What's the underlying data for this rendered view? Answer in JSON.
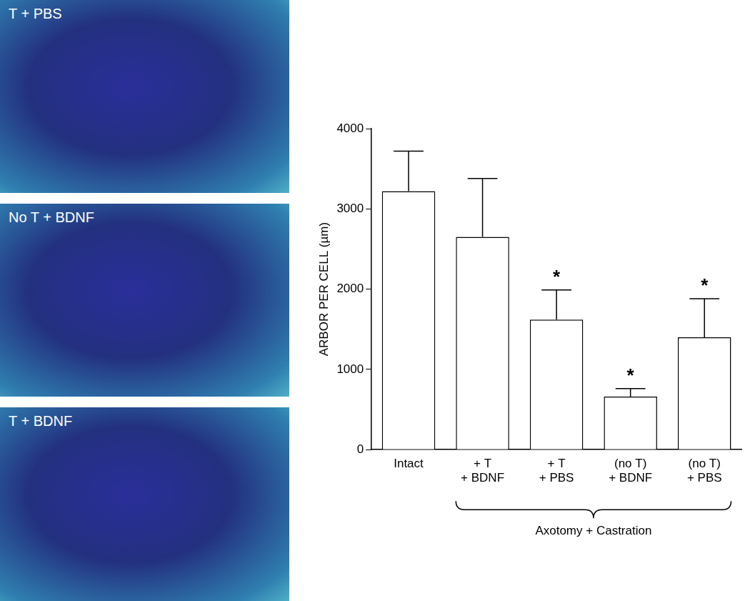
{
  "panels": [
    {
      "label": "T + PBS"
    },
    {
      "label": "No T + BDNF"
    },
    {
      "label": "T + BDNF"
    }
  ],
  "chart_data": {
    "type": "bar",
    "y_label": "ARBOR PER CELL (µm)",
    "categories": [
      [
        "Intact"
      ],
      [
        "+ T",
        "+ BDNF"
      ],
      [
        "+ T",
        "+ PBS"
      ],
      [
        "(no T)",
        "+ BDNF"
      ],
      [
        "(no T)",
        "+ PBS"
      ]
    ],
    "values": [
      3220,
      2650,
      1620,
      660,
      1400
    ],
    "errors": [
      500,
      730,
      370,
      100,
      480
    ],
    "significant": [
      false,
      false,
      true,
      true,
      true
    ],
    "significance_label": "*",
    "group_label": {
      "text": "Axotomy + Castration",
      "from": 1,
      "to": 4
    },
    "color": "#ffffff",
    "ylim": [
      0,
      4000
    ],
    "yticks": [
      0,
      1000,
      2000,
      3000,
      4000
    ],
    "grid": false
  }
}
